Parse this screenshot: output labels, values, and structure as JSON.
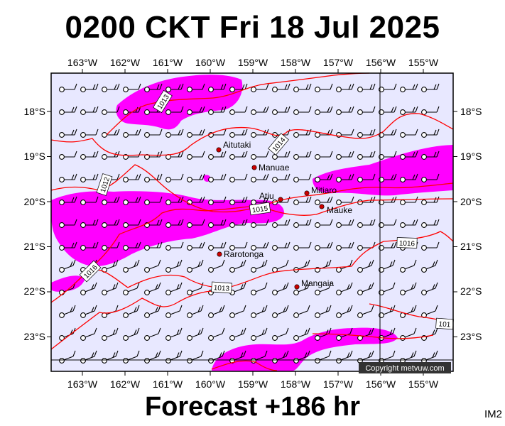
{
  "title": "0200 CKT Fri 18 Jul 2025",
  "footer": "Forecast +186 hr",
  "corner_code": "IM2",
  "copyright": "Copyright metvuw.com",
  "map": {
    "lon_labels": [
      "163°W",
      "162°W",
      "161°W",
      "160°W",
      "159°W",
      "158°W",
      "157°W",
      "156°W",
      "155°W"
    ],
    "lat_labels": [
      "18°S",
      "19°S",
      "20°S",
      "21°S",
      "22°S",
      "23°S"
    ],
    "places": [
      {
        "name": "Aitutaki"
      },
      {
        "name": "Manuae"
      },
      {
        "name": "Mitiaro"
      },
      {
        "name": "Atiu"
      },
      {
        "name": "Mauke"
      },
      {
        "name": "Rarotonga"
      },
      {
        "name": "Mangaia"
      }
    ],
    "isobar_labels": [
      "1013",
      "1014",
      "1012",
      "1015",
      "1016",
      "1013",
      "1016",
      "101"
    ],
    "colors": {
      "ocean": "#e8e8ff",
      "rain": "#ff00ff",
      "isobar": "#ff0000",
      "island": "#cc0000"
    }
  }
}
